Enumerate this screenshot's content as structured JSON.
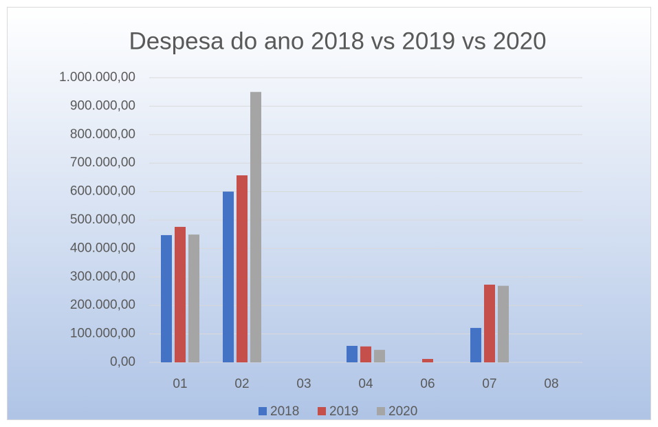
{
  "chart_data": {
    "type": "bar",
    "title": "Despesa do ano 2018 vs 2019 vs 2020",
    "categories": [
      "01",
      "02",
      "03",
      "04",
      "06",
      "07",
      "08"
    ],
    "series": [
      {
        "name": "2018",
        "color": "#4472c4",
        "values": [
          447000,
          600000,
          0,
          58000,
          0,
          121000,
          0
        ]
      },
      {
        "name": "2019",
        "color": "#c5504b",
        "values": [
          476000,
          657000,
          0,
          56000,
          12000,
          273000,
          0
        ]
      },
      {
        "name": "2020",
        "color": "#a5a5a5",
        "values": [
          449000,
          950000,
          0,
          44000,
          0,
          269000,
          0
        ]
      }
    ],
    "ylim": [
      0,
      1000000
    ],
    "yticks": [
      {
        "value": 0,
        "label": "0,00"
      },
      {
        "value": 100000,
        "label": "100.000,00"
      },
      {
        "value": 200000,
        "label": "200.000,00"
      },
      {
        "value": 300000,
        "label": "300.000,00"
      },
      {
        "value": 400000,
        "label": "400.000,00"
      },
      {
        "value": 500000,
        "label": "500.000,00"
      },
      {
        "value": 600000,
        "label": "600.000,00"
      },
      {
        "value": 700000,
        "label": "700.000,00"
      },
      {
        "value": 800000,
        "label": "800.000,00"
      },
      {
        "value": 900000,
        "label": "900.000,00"
      },
      {
        "value": 1000000,
        "label": "1.000.000,00"
      }
    ],
    "grid": true,
    "legend": "bottom"
  }
}
